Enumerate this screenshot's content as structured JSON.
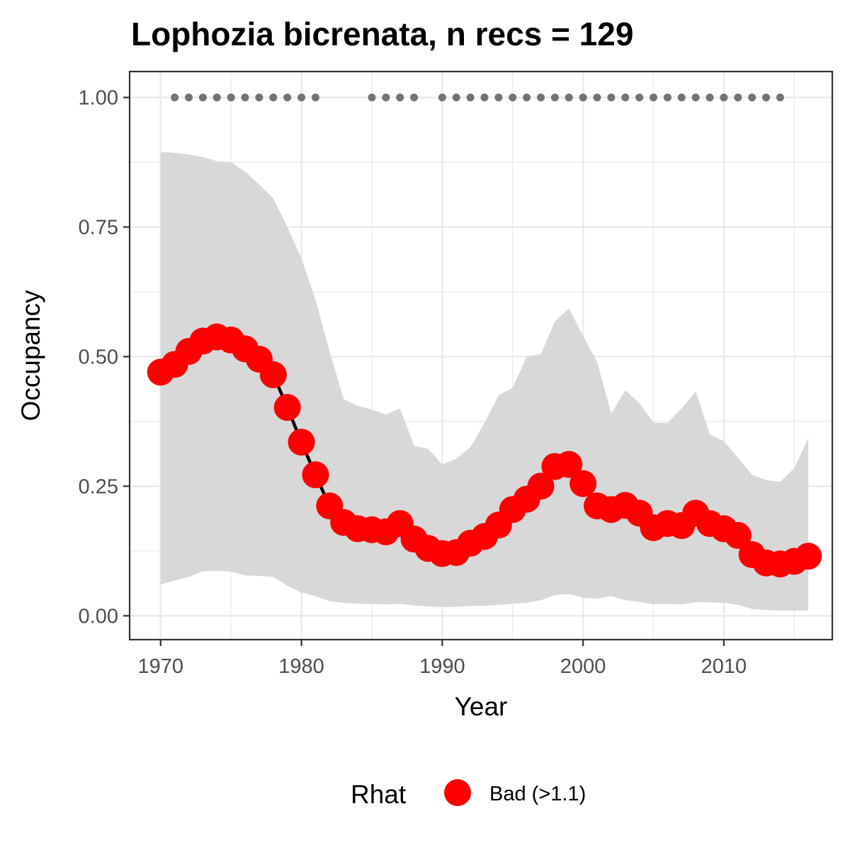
{
  "chart_data": {
    "type": "line",
    "title": "Lophozia bicrenata, n recs = 129",
    "xlabel": "Year",
    "ylabel": "Occupancy",
    "xlim": [
      1967.8,
      2017.7
    ],
    "ylim": [
      -0.046,
      1.05
    ],
    "x_ticks": [
      1970,
      1980,
      1990,
      2000,
      2010
    ],
    "x_tick_labels": [
      "1970",
      "1980",
      "1990",
      "2000",
      "2010"
    ],
    "y_ticks": [
      0,
      0.25,
      0.5,
      0.75,
      1.0
    ],
    "y_tick_labels": [
      "0.00",
      "0.25",
      "0.50",
      "0.75",
      "1.00"
    ],
    "grid": true,
    "colors": {
      "points": "#ff0000",
      "line": "#000000",
      "ribbon": "#d6d6d6",
      "record_dots": "#737373",
      "grid_major": "#ebebeb",
      "panel_border": "#333333"
    },
    "series": [
      {
        "x": [
          1970,
          1971,
          1972,
          1973,
          1974,
          1975,
          1976,
          1977,
          1978,
          1979,
          1980,
          1981,
          1982,
          1983,
          1984,
          1985,
          1986,
          1987,
          1988,
          1989,
          1990,
          1991,
          1992,
          1993,
          1994,
          1995,
          1996,
          1997,
          1998,
          1999,
          2000,
          2001,
          2002,
          2003,
          2004,
          2005,
          2006,
          2007,
          2008,
          2009,
          2010,
          2011,
          2012,
          2013,
          2014,
          2015,
          2016
        ],
        "y": [
          0.47,
          0.485,
          0.51,
          0.53,
          0.538,
          0.532,
          0.515,
          0.495,
          0.465,
          0.402,
          0.335,
          0.272,
          0.212,
          0.18,
          0.168,
          0.166,
          0.162,
          0.178,
          0.148,
          0.13,
          0.12,
          0.122,
          0.14,
          0.153,
          0.175,
          0.205,
          0.225,
          0.25,
          0.288,
          0.292,
          0.255,
          0.212,
          0.205,
          0.213,
          0.198,
          0.17,
          0.178,
          0.174,
          0.198,
          0.178,
          0.168,
          0.155,
          0.118,
          0.102,
          0.1,
          0.105,
          0.115
        ],
        "lower": [
          0.06,
          0.068,
          0.075,
          0.086,
          0.087,
          0.085,
          0.078,
          0.077,
          0.075,
          0.058,
          0.045,
          0.038,
          0.028,
          0.025,
          0.023,
          0.023,
          0.022,
          0.023,
          0.02,
          0.018,
          0.017,
          0.017,
          0.019,
          0.019,
          0.021,
          0.023,
          0.025,
          0.03,
          0.04,
          0.042,
          0.035,
          0.033,
          0.038,
          0.03,
          0.027,
          0.022,
          0.023,
          0.022,
          0.026,
          0.026,
          0.025,
          0.021,
          0.013,
          0.011,
          0.01,
          0.01,
          0.01
        ],
        "upper": [
          0.895,
          0.893,
          0.89,
          0.885,
          0.877,
          0.875,
          0.857,
          0.832,
          0.805,
          0.75,
          0.69,
          0.61,
          0.51,
          0.418,
          0.405,
          0.398,
          0.388,
          0.4,
          0.328,
          0.322,
          0.292,
          0.303,
          0.325,
          0.372,
          0.425,
          0.44,
          0.5,
          0.505,
          0.568,
          0.593,
          0.54,
          0.49,
          0.39,
          0.435,
          0.41,
          0.373,
          0.372,
          0.4,
          0.433,
          0.35,
          0.337,
          0.305,
          0.272,
          0.262,
          0.258,
          0.285,
          0.343
        ]
      }
    ],
    "records_y": 1.0,
    "record_years": [
      1971,
      1972,
      1973,
      1974,
      1975,
      1976,
      1977,
      1978,
      1979,
      1980,
      1981,
      1985,
      1986,
      1987,
      1988,
      1990,
      1991,
      1992,
      1993,
      1994,
      1995,
      1996,
      1997,
      1998,
      1999,
      2000,
      2001,
      2002,
      2003,
      2004,
      2005,
      2006,
      2007,
      2008,
      2009,
      2010,
      2011,
      2012,
      2013,
      2014
    ],
    "legend": {
      "title": "Rhat",
      "items": [
        {
          "label": "Bad (>1.1)",
          "color": "#ff0000"
        }
      ],
      "position": "bottom"
    }
  }
}
